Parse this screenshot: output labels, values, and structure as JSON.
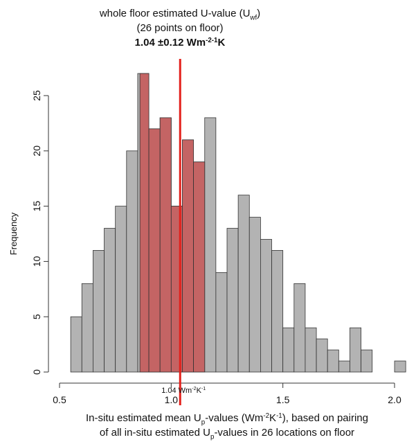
{
  "chart_data": {
    "type": "histogram",
    "title_lines": [
      [
        {
          "text": "whole floor estimated U-value (U"
        },
        {
          "text": "wf",
          "shift": "sub"
        },
        {
          "text": ")"
        }
      ],
      [
        {
          "text": "(26 points on floor)"
        }
      ],
      [
        {
          "text": "1.04 ±0.12 Wm"
        },
        {
          "text": "-2-1",
          "shift": "sup"
        },
        {
          "text": "K"
        }
      ]
    ],
    "ylabel": "Frequency",
    "xlabel_lines": [
      [
        {
          "text": "In-situ estimated mean U"
        },
        {
          "text": "p",
          "shift": "sub"
        },
        {
          "text": "-values (Wm"
        },
        {
          "text": "-2",
          "shift": "sup"
        },
        {
          "text": "K"
        },
        {
          "text": "-1",
          "shift": "sup"
        },
        {
          "text": "), based on pairing"
        }
      ],
      [
        {
          "text": "of all in-situ estimated U"
        },
        {
          "text": "p",
          "shift": "sub"
        },
        {
          "text": "-values in 26 locations on floor"
        }
      ]
    ],
    "series": [
      {
        "color": "#b3b3b3",
        "bins": [
          0.55,
          0.6,
          0.65,
          0.7,
          0.75,
          0.8,
          0.85,
          0.9,
          0.95,
          1.0,
          1.05,
          1.1,
          1.15,
          1.2,
          1.25,
          1.3,
          1.35,
          1.4,
          1.45,
          1.5,
          1.55,
          1.6,
          1.65,
          1.7,
          1.75,
          1.8,
          1.85,
          1.9,
          1.95,
          2.0,
          2.05
        ],
        "values": [
          5,
          8,
          11,
          13,
          15,
          20,
          27,
          22,
          23,
          15,
          21,
          19,
          23,
          9,
          13,
          16,
          14,
          12,
          11,
          4,
          8,
          4,
          3,
          2,
          1,
          4,
          2,
          0,
          0,
          1
        ]
      },
      {
        "color": "#c46464",
        "bins": [
          0.86,
          0.9,
          0.95,
          1.0,
          1.05,
          1.1,
          1.15
        ],
        "values": [
          27,
          22,
          23,
          15,
          21,
          19
        ]
      }
    ],
    "vline": {
      "value": 1.04,
      "color": "#e3201b",
      "label": [
        {
          "text": "1.04 Wm"
        },
        {
          "text": "-2",
          "shift": "sup"
        },
        {
          "text": "K"
        },
        {
          "text": "-1",
          "shift": "sup"
        }
      ]
    },
    "xlim": [
      0.5,
      2.0
    ],
    "xticks": [
      {
        "value": 0.5,
        "label": "0.5"
      },
      {
        "value": 1.0,
        "label": "1.0"
      },
      {
        "value": 1.5,
        "label": "1.5"
      },
      {
        "value": 2.0,
        "label": "2.0"
      }
    ],
    "ylim": [
      0,
      25
    ],
    "yticks": [
      0,
      5,
      10,
      15,
      20,
      25
    ]
  }
}
